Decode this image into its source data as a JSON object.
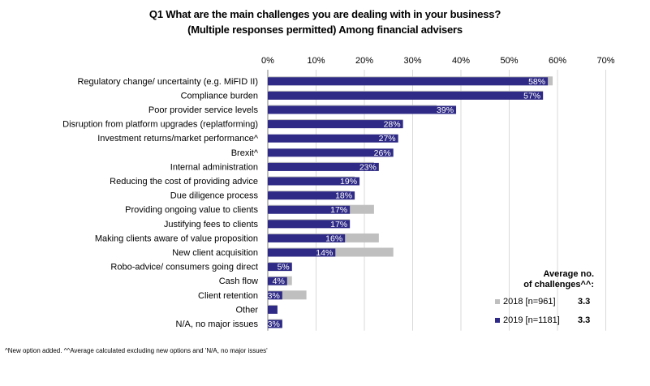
{
  "chart_data": {
    "type": "bar",
    "title": "Q1 What are the main challenges you are dealing with in your business?",
    "subtitle": "(Multiple responses permitted) Among financial advisers",
    "orientation": "horizontal",
    "xlim": [
      0,
      70
    ],
    "x_ticks": [
      "0%",
      "10%",
      "20%",
      "30%",
      "40%",
      "50%",
      "60%",
      "70%"
    ],
    "grid": true,
    "categories": [
      "Regulatory change/ uncertainty (e.g. MiFID II)",
      "Compliance burden",
      "Poor provider service levels",
      "Disruption from platform upgrades (replatforming)",
      "Investment returns/market performance^",
      "Brexit^",
      "Internal administration",
      "Reducing the cost of providing advice",
      "Due diligence process",
      "Providing ongoing value to clients",
      "Justifying fees to clients",
      "Making clients aware of value proposition",
      "New client acquisition",
      "Robo-advice/ consumers going direct",
      "Cash flow",
      "Client retention",
      "Other",
      "N/A, no major issues"
    ],
    "series": [
      {
        "name": "2018 [n=961]",
        "color": "#bfbfbf",
        "values": [
          59,
          57,
          35,
          28,
          null,
          null,
          22,
          18,
          17,
          22,
          17,
          23,
          26,
          5,
          5,
          8,
          2,
          3
        ]
      },
      {
        "name": "2019 [n=1181]",
        "color": "#2e2a86",
        "values": [
          58,
          57,
          39,
          28,
          27,
          26,
          23,
          19,
          18,
          17,
          17,
          16,
          14,
          5,
          4,
          3,
          2,
          3
        ],
        "labels": [
          "58%",
          "57%",
          "39%",
          "28%",
          "27%",
          "26%",
          "23%",
          "19%",
          "18%",
          "17%",
          "17%",
          "16%",
          "14%",
          "5%",
          "4%",
          "3%",
          "",
          "3%"
        ]
      }
    ]
  },
  "legend": {
    "heading_line1": "Average no.",
    "heading_line2": "of challenges^^:",
    "items": [
      {
        "label": "2018 [n=961]",
        "value": "3.3",
        "color": "#bfbfbf"
      },
      {
        "label": "2019 [n=1181]",
        "value": "3.3",
        "color": "#2e2a86"
      }
    ]
  },
  "footnote": "^New option added. ^^Average calculated excluding new options and 'N/A, no major issues'"
}
